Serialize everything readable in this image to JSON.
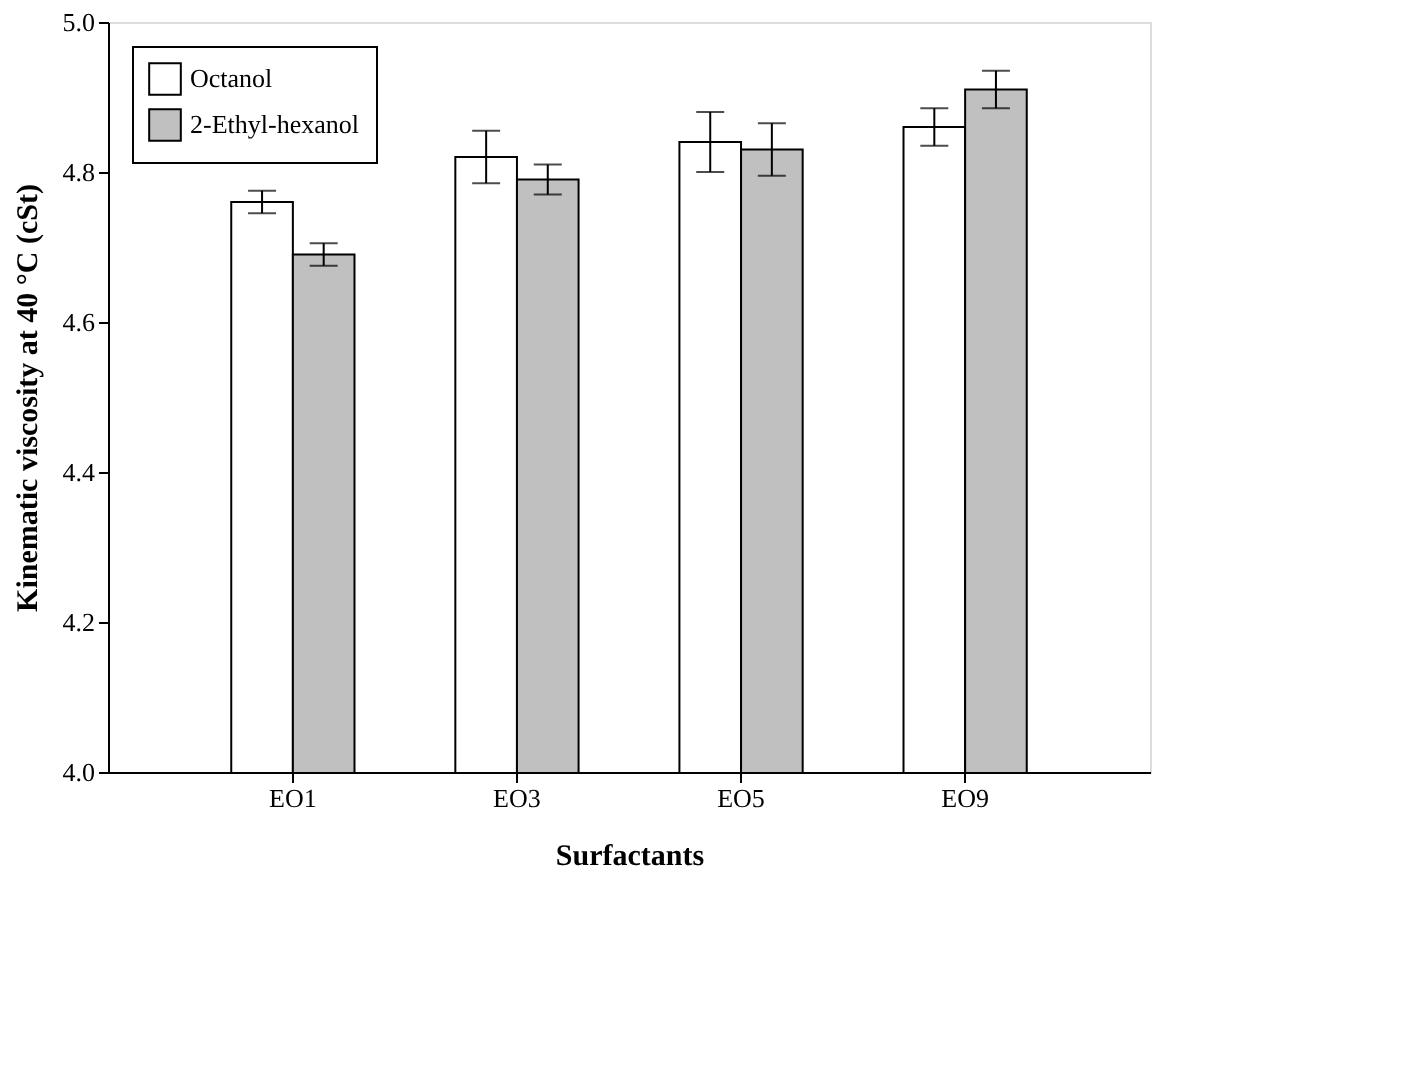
{
  "chart_data": {
    "type": "bar",
    "xlabel": "Surfactants",
    "ylabel": "Kinematic viscosity at 40 °C (cSt)",
    "categories": [
      "EO1",
      "EO3",
      "EO5",
      "EO9"
    ],
    "series": [
      {
        "name": "Octanol",
        "color": "#ffffff",
        "values": [
          4.76,
          4.82,
          4.84,
          4.86
        ],
        "errors": [
          0.015,
          0.035,
          0.04,
          0.025
        ]
      },
      {
        "name": "2-Ethyl-hexanol",
        "color": "#c0c0c0",
        "values": [
          4.69,
          4.79,
          4.83,
          4.91
        ],
        "errors": [
          0.015,
          0.02,
          0.035,
          0.025
        ]
      }
    ],
    "ylim": [
      4.0,
      5.0
    ],
    "yticks": [
      {
        "value": 4.0,
        "label": "4.0"
      },
      {
        "value": 4.2,
        "label": "4.2"
      },
      {
        "value": 4.4,
        "label": "4.4"
      },
      {
        "value": 4.6,
        "label": "4.6"
      },
      {
        "value": 4.8,
        "label": "4.8"
      },
      {
        "value": 5.0,
        "label": "5.0"
      }
    ],
    "legend": "top left",
    "grid": false
  }
}
